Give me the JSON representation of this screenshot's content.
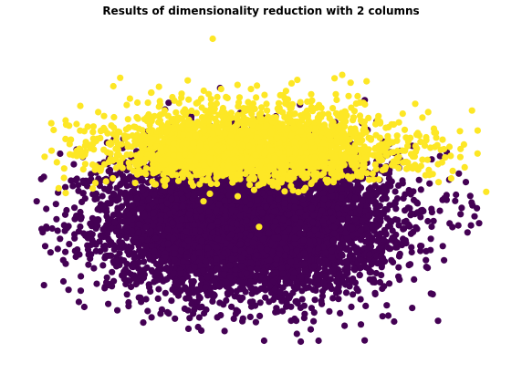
{
  "chart_data": {
    "type": "scatter",
    "title": "Results of dimensionality reduction with 2 columns",
    "xlabel": "",
    "ylabel": "",
    "axes_visible": false,
    "grid": false,
    "legend": "none",
    "xlim": [
      -4.6,
      5.6
    ],
    "ylim": [
      -4.8,
      5.5
    ],
    "colors": {
      "class_0": "#440154",
      "class_1": "#fde725"
    },
    "series": [
      {
        "class": 0,
        "color": "#440154",
        "distribution": {
          "center": [
            0.2,
            -0.5
          ],
          "spread": [
            1.5,
            1.1
          ],
          "count": 7000
        },
        "notable_points": [
          [
            -4.4,
            0.1
          ],
          [
            -4.1,
            -1.5
          ],
          [
            4.4,
            0.2
          ],
          [
            -2.1,
            -3.7
          ],
          [
            1.3,
            -4.3
          ],
          [
            -1.0,
            -3.3
          ],
          [
            3.9,
            -1.3
          ],
          [
            -4.3,
            0.8
          ]
        ]
      },
      {
        "class": 1,
        "color": "#fde725",
        "distribution": {
          "center": [
            0.3,
            1.2
          ],
          "spread": [
            1.6,
            0.85
          ],
          "count": 2500
        },
        "notable_points": [
          [
            -0.6,
            5.2
          ],
          [
            5.3,
            0.4
          ],
          [
            -0.8,
            0.1
          ],
          [
            0.4,
            -0.7
          ],
          [
            0.7,
            0.6
          ],
          [
            1.1,
            3.8
          ]
        ]
      }
    ]
  }
}
